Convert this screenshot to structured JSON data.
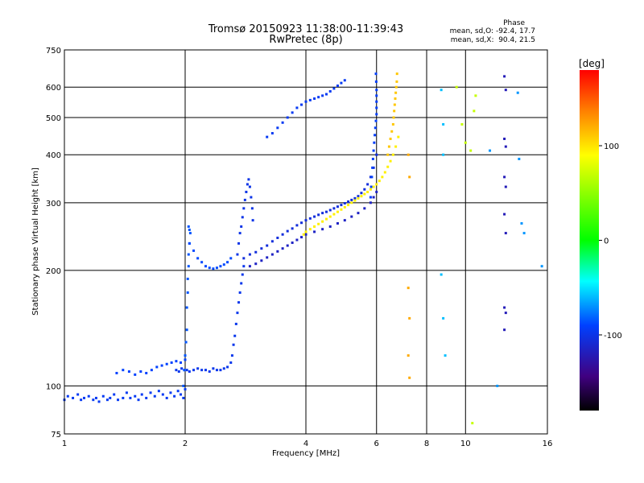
{
  "chart_data": {
    "type": "scatter",
    "title": "Tromsø 20150923 11:38:00-11:39:43",
    "subtitle": "RwPretec (8p)",
    "xlabel": "Frequency [MHz]",
    "ylabel": "Stationary phase Virtual Height [km]",
    "x_scale": "log",
    "y_scale": "log",
    "xlim": [
      1,
      16
    ],
    "ylim": [
      75,
      750
    ],
    "x_ticks": [
      1,
      2,
      4,
      6,
      8,
      10,
      16
    ],
    "y_ticks": [
      75,
      100,
      200,
      300,
      400,
      500,
      600,
      750
    ],
    "x_grid": [
      2,
      4,
      6,
      8,
      10
    ],
    "y_grid": [
      100,
      200,
      300,
      400,
      500,
      600
    ],
    "grid": true,
    "stats": {
      "heading": "Phase",
      "line_o": "mean, sd,O: -92.4, 17.7",
      "line_x": "mean, sd,X:  90.4, 21.5"
    },
    "colorbar": {
      "label": "[deg]",
      "range": [
        -180,
        180
      ],
      "ticks": [
        100,
        0,
        -100
      ],
      "colors": [
        "#ff0000",
        "#ff8000",
        "#ffff00",
        "#00ff00",
        "#00ffff",
        "#0040ff",
        "#400080",
        "#000000"
      ]
    },
    "series": [
      {
        "phase": -95,
        "x": [
          1.0,
          1.02,
          1.05,
          1.08,
          1.1,
          1.12,
          1.15,
          1.18,
          1.2,
          1.22,
          1.25,
          1.28,
          1.3,
          1.33,
          1.36,
          1.4,
          1.43,
          1.46,
          1.5,
          1.53,
          1.56,
          1.6,
          1.64,
          1.68,
          1.72,
          1.76,
          1.8,
          1.84,
          1.88,
          1.92,
          1.95,
          1.98,
          2.0
        ],
        "y": [
          92,
          94,
          93,
          95,
          92,
          93,
          94,
          92,
          93,
          91,
          94,
          92,
          93,
          95,
          92,
          93,
          96,
          93,
          94,
          92,
          95,
          93,
          96,
          94,
          97,
          95,
          93,
          96,
          94,
          97,
          95,
          93,
          98
        ]
      },
      {
        "phase": -90,
        "x": [
          1.35,
          1.4,
          1.45,
          1.5,
          1.55,
          1.6,
          1.65,
          1.7,
          1.75,
          1.8,
          1.85,
          1.9,
          1.95,
          2.0
        ],
        "y": [
          108,
          110,
          109,
          107,
          109,
          108,
          110,
          112,
          113,
          114,
          115,
          116,
          115,
          117
        ]
      },
      {
        "phase": -98,
        "x": [
          1.9,
          1.93,
          1.96,
          1.99,
          2.02,
          2.05,
          2.1,
          2.15,
          2.2,
          2.25,
          2.3,
          2.35,
          2.4,
          2.45,
          2.5,
          2.55,
          2.6,
          2.62,
          2.64,
          2.66,
          2.68,
          2.7,
          2.72,
          2.74,
          2.76,
          2.78,
          2.8
        ],
        "y": [
          110,
          109,
          111,
          110,
          110,
          109,
          110,
          111,
          110,
          110,
          109,
          111,
          110,
          110,
          111,
          112,
          115,
          120,
          128,
          135,
          145,
          155,
          165,
          175,
          185,
          195,
          205
        ]
      },
      {
        "phase": -85,
        "x": [
          1.98,
          1.99,
          2.0,
          2.01,
          2.02,
          2.02,
          2.03,
          2.03,
          2.04,
          2.04,
          2.05,
          2.06,
          2.05,
          2.04
        ],
        "y": [
          100,
          110,
          120,
          130,
          140,
          160,
          175,
          190,
          205,
          220,
          235,
          250,
          255,
          260
        ]
      },
      {
        "phase": -88,
        "x": [
          2.05,
          2.1,
          2.15,
          2.2,
          2.25,
          2.3,
          2.35,
          2.4,
          2.45,
          2.5,
          2.55,
          2.6
        ],
        "y": [
          235,
          225,
          215,
          210,
          205,
          203,
          202,
          203,
          205,
          207,
          210,
          215
        ]
      },
      {
        "phase": -100,
        "x": [
          2.7,
          2.72,
          2.74,
          2.76,
          2.78,
          2.8,
          2.82,
          2.84,
          2.86,
          2.88,
          2.9,
          2.92,
          2.94,
          2.95
        ],
        "y": [
          220,
          235,
          250,
          260,
          275,
          290,
          305,
          320,
          335,
          345,
          330,
          310,
          290,
          270
        ]
      },
      {
        "phase": -105,
        "x": [
          2.8,
          2.9,
          3.0,
          3.1,
          3.2,
          3.3,
          3.4,
          3.5,
          3.6,
          3.7,
          3.8,
          3.9,
          4.0,
          4.1,
          4.2,
          4.3,
          4.4,
          4.5,
          4.6,
          4.7,
          4.8,
          4.9,
          5.0,
          5.1,
          5.2,
          5.3,
          5.4,
          5.5,
          5.6,
          5.7,
          5.8,
          5.9,
          6.0
        ],
        "y": [
          215,
          220,
          223,
          228,
          232,
          238,
          243,
          248,
          253,
          257,
          262,
          266,
          270,
          273,
          276,
          279,
          282,
          284,
          287,
          290,
          293,
          296,
          299,
          302,
          305,
          308,
          312,
          318,
          325,
          335,
          350,
          370,
          400
        ]
      },
      {
        "phase": -115,
        "x": [
          2.9,
          3.0,
          3.1,
          3.2,
          3.3,
          3.4,
          3.5,
          3.6,
          3.7,
          3.8,
          3.9,
          4.0,
          4.2,
          4.4,
          4.6,
          4.8,
          5.0,
          5.2,
          5.4,
          5.6,
          5.8,
          5.9,
          6.0
        ],
        "y": [
          205,
          208,
          212,
          216,
          220,
          224,
          228,
          232,
          236,
          240,
          244,
          248,
          252,
          256,
          260,
          265,
          270,
          276,
          282,
          290,
          300,
          310,
          320
        ]
      },
      {
        "phase": -95,
        "x": [
          3.2,
          3.3,
          3.4,
          3.5,
          3.6,
          3.7,
          3.8,
          3.9,
          4.0,
          4.1,
          4.2,
          4.3,
          4.4,
          4.5,
          4.6,
          4.7,
          4.8,
          4.9,
          5.0
        ],
        "y": [
          445,
          455,
          470,
          485,
          500,
          515,
          530,
          540,
          550,
          555,
          560,
          565,
          570,
          575,
          585,
          595,
          605,
          615,
          625
        ]
      },
      {
        "phase": -92,
        "x": [
          5.8,
          5.82,
          5.84,
          5.86,
          5.88,
          5.9,
          5.92,
          5.94,
          5.96,
          5.98,
          6.0,
          6.0,
          6.0,
          6.0,
          6.0,
          5.99,
          5.98
        ],
        "y": [
          310,
          330,
          350,
          370,
          390,
          410,
          430,
          450,
          470,
          490,
          510,
          530,
          550,
          570,
          590,
          620,
          650
        ]
      },
      {
        "phase": 95,
        "x": [
          3.95,
          4.0,
          4.1,
          4.2,
          4.3,
          4.4,
          4.5,
          4.6,
          4.7,
          4.8,
          4.9,
          5.0,
          5.1,
          5.2,
          5.3,
          5.4,
          5.5,
          5.6,
          5.7,
          5.8,
          5.9,
          6.0,
          6.1,
          6.2,
          6.3,
          6.4,
          6.5,
          6.6,
          6.7,
          6.8
        ],
        "y": [
          248,
          252,
          256,
          260,
          264,
          268,
          272,
          276,
          280,
          284,
          288,
          292,
          296,
          300,
          304,
          308,
          312,
          316,
          320,
          325,
          330,
          335,
          342,
          350,
          360,
          372,
          385,
          400,
          420,
          445
        ]
      },
      {
        "phase": 110,
        "x": [
          6.4,
          6.45,
          6.5,
          6.55,
          6.6,
          6.62,
          6.64,
          6.66,
          6.68,
          6.7,
          6.72,
          6.74,
          6.75
        ],
        "y": [
          400,
          420,
          440,
          460,
          480,
          500,
          520,
          540,
          560,
          580,
          600,
          620,
          650
        ]
      },
      {
        "phase": 120,
        "x": [
          7.2,
          7.25,
          7.2,
          7.25,
          7.2,
          7.25
        ],
        "y": [
          400,
          350,
          180,
          150,
          120,
          105
        ]
      },
      {
        "phase": -60,
        "x": [
          8.7,
          8.8,
          8.8,
          8.7,
          8.8,
          8.9
        ],
        "y": [
          590,
          480,
          400,
          195,
          150,
          120
        ]
      },
      {
        "phase": 70,
        "x": [
          9.5,
          9.8,
          10.0,
          10.3,
          10.5,
          10.6,
          10.4
        ],
        "y": [
          600,
          480,
          430,
          410,
          520,
          570,
          80
        ]
      },
      {
        "phase": -120,
        "x": [
          12.5,
          12.6,
          12.5,
          12.6,
          12.5,
          12.6,
          12.5,
          12.6,
          12.5,
          12.6,
          12.5
        ],
        "y": [
          640,
          590,
          440,
          420,
          350,
          330,
          280,
          250,
          160,
          155,
          140
        ]
      },
      {
        "phase": -70,
        "x": [
          13.5,
          13.6,
          13.8,
          14.0,
          15.5,
          11.5,
          12.0
        ],
        "y": [
          580,
          390,
          265,
          250,
          205,
          410,
          100
        ]
      }
    ]
  }
}
